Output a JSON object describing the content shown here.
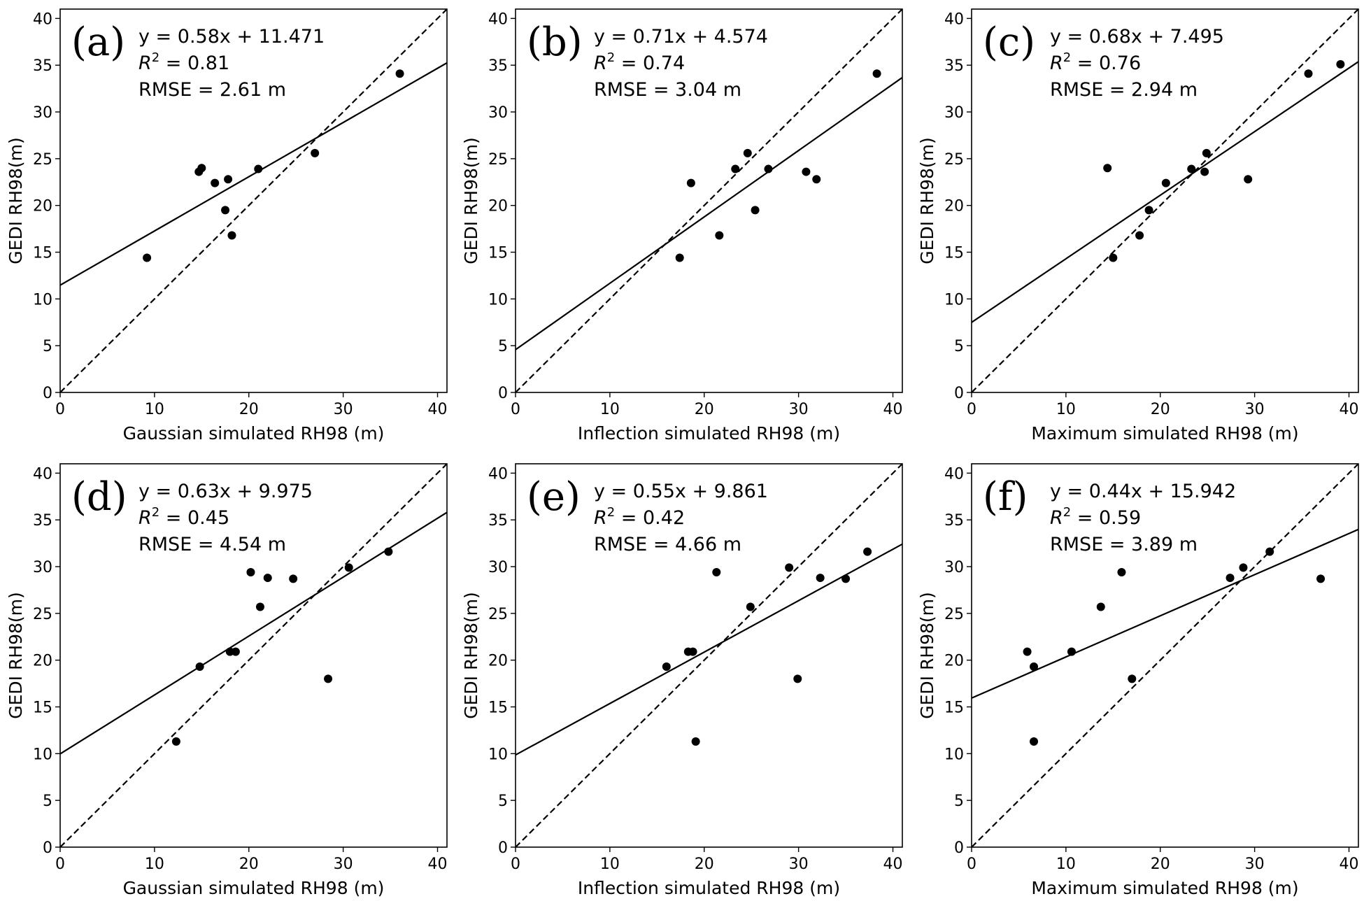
{
  "figure": {
    "y_axis_label": "GEDI RH98(m)"
  },
  "chart_data": [
    {
      "panel": "(a)",
      "type": "scatter",
      "xlabel": "Gaussian simulated RH98 (m)",
      "ylabel": "GEDI RH98(m)",
      "xlim": [
        0,
        41
      ],
      "ylim": [
        0,
        41
      ],
      "xticks": [
        0,
        10,
        20,
        30,
        40
      ],
      "yticks": [
        0,
        5,
        10,
        15,
        20,
        25,
        30,
        35,
        40
      ],
      "equation": "y = 0.58x + 11.471",
      "r2_value": "0.81",
      "rmse": "RMSE = 2.61 m",
      "slope": 0.58,
      "intercept": 11.471,
      "points": [
        [
          9.2,
          14.4
        ],
        [
          14.7,
          23.6
        ],
        [
          15.0,
          24.0
        ],
        [
          16.4,
          22.4
        ],
        [
          17.5,
          19.5
        ],
        [
          17.8,
          22.8
        ],
        [
          18.2,
          16.8
        ],
        [
          21.0,
          23.9
        ],
        [
          27.0,
          25.6
        ],
        [
          36.0,
          34.1
        ]
      ]
    },
    {
      "panel": "(b)",
      "type": "scatter",
      "xlabel": "Inflection simulated RH98 (m)",
      "ylabel": "GEDI RH98(m)",
      "xlim": [
        0,
        41
      ],
      "ylim": [
        0,
        41
      ],
      "xticks": [
        0,
        10,
        20,
        30,
        40
      ],
      "yticks": [
        0,
        5,
        10,
        15,
        20,
        25,
        30,
        35,
        40
      ],
      "equation": "y = 0.71x + 4.574",
      "r2_value": "0.74",
      "rmse": "RMSE = 3.04 m",
      "slope": 0.71,
      "intercept": 4.574,
      "points": [
        [
          17.4,
          14.4
        ],
        [
          18.6,
          22.4
        ],
        [
          21.6,
          16.8
        ],
        [
          23.3,
          23.9
        ],
        [
          24.6,
          25.6
        ],
        [
          25.4,
          19.5
        ],
        [
          26.8,
          23.9
        ],
        [
          30.8,
          23.6
        ],
        [
          31.9,
          22.8
        ],
        [
          38.3,
          34.1
        ]
      ]
    },
    {
      "panel": "(c)",
      "type": "scatter",
      "xlabel": "Maximum simulated RH98 (m)",
      "ylabel": "GEDI RH98(m)",
      "xlim": [
        0,
        41
      ],
      "ylim": [
        0,
        41
      ],
      "xticks": [
        0,
        10,
        20,
        30,
        40
      ],
      "yticks": [
        0,
        5,
        10,
        15,
        20,
        25,
        30,
        35,
        40
      ],
      "equation": "y = 0.68x + 7.495",
      "r2_value": "0.76",
      "rmse": "RMSE = 2.94 m",
      "slope": 0.68,
      "intercept": 7.495,
      "points": [
        [
          14.4,
          24.0
        ],
        [
          15.0,
          14.4
        ],
        [
          17.8,
          16.8
        ],
        [
          18.8,
          19.5
        ],
        [
          20.6,
          22.4
        ],
        [
          23.3,
          23.9
        ],
        [
          24.7,
          23.6
        ],
        [
          24.9,
          25.6
        ],
        [
          29.3,
          22.8
        ],
        [
          35.7,
          34.1
        ],
        [
          39.1,
          35.1
        ]
      ]
    },
    {
      "panel": "(d)",
      "type": "scatter",
      "xlabel": "Gaussian simulated RH98 (m)",
      "ylabel": "GEDI RH98(m)",
      "xlim": [
        0,
        41
      ],
      "ylim": [
        0,
        41
      ],
      "xticks": [
        0,
        10,
        20,
        30,
        40
      ],
      "yticks": [
        0,
        5,
        10,
        15,
        20,
        25,
        30,
        35,
        40
      ],
      "equation": "y = 0.63x + 9.975",
      "r2_value": "0.45",
      "rmse": "RMSE = 4.54 m",
      "slope": 0.63,
      "intercept": 9.975,
      "points": [
        [
          12.3,
          11.3
        ],
        [
          14.8,
          19.3
        ],
        [
          18.0,
          20.9
        ],
        [
          18.6,
          20.9
        ],
        [
          20.2,
          29.4
        ],
        [
          21.2,
          25.7
        ],
        [
          22.0,
          28.8
        ],
        [
          24.7,
          28.7
        ],
        [
          28.4,
          18.0
        ],
        [
          30.6,
          29.9
        ],
        [
          34.8,
          31.6
        ]
      ]
    },
    {
      "panel": "(e)",
      "type": "scatter",
      "xlabel": "Inflection simulated RH98 (m)",
      "ylabel": "GEDI RH98(m)",
      "xlim": [
        0,
        41
      ],
      "ylim": [
        0,
        41
      ],
      "xticks": [
        0,
        10,
        20,
        30,
        40
      ],
      "yticks": [
        0,
        5,
        10,
        15,
        20,
        25,
        30,
        35,
        40
      ],
      "equation": "y = 0.55x + 9.861",
      "r2_value": "0.42",
      "rmse": "RMSE = 4.66 m",
      "slope": 0.55,
      "intercept": 9.861,
      "points": [
        [
          16.0,
          19.3
        ],
        [
          18.3,
          20.9
        ],
        [
          18.8,
          20.9
        ],
        [
          19.1,
          11.3
        ],
        [
          21.3,
          29.4
        ],
        [
          24.9,
          25.7
        ],
        [
          29.0,
          29.9
        ],
        [
          29.9,
          18.0
        ],
        [
          32.3,
          28.8
        ],
        [
          35.0,
          28.7
        ],
        [
          37.3,
          31.6
        ]
      ]
    },
    {
      "panel": "(f)",
      "type": "scatter",
      "xlabel": "Maximum simulated RH98 (m)",
      "ylabel": "GEDI RH98(m)",
      "xlim": [
        0,
        41
      ],
      "ylim": [
        0,
        41
      ],
      "xticks": [
        0,
        10,
        20,
        30,
        40
      ],
      "yticks": [
        0,
        5,
        10,
        15,
        20,
        25,
        30,
        35,
        40
      ],
      "equation": "y = 0.44x + 15.942",
      "r2_value": "0.59",
      "rmse": "RMSE = 3.89 m",
      "slope": 0.44,
      "intercept": 15.942,
      "points": [
        [
          5.9,
          20.9
        ],
        [
          6.6,
          19.3
        ],
        [
          6.6,
          11.3
        ],
        [
          10.6,
          20.9
        ],
        [
          13.7,
          25.7
        ],
        [
          15.9,
          29.4
        ],
        [
          17.0,
          18.0
        ],
        [
          27.4,
          28.8
        ],
        [
          28.8,
          29.9
        ],
        [
          31.6,
          31.6
        ],
        [
          37.0,
          28.7
        ]
      ]
    }
  ]
}
